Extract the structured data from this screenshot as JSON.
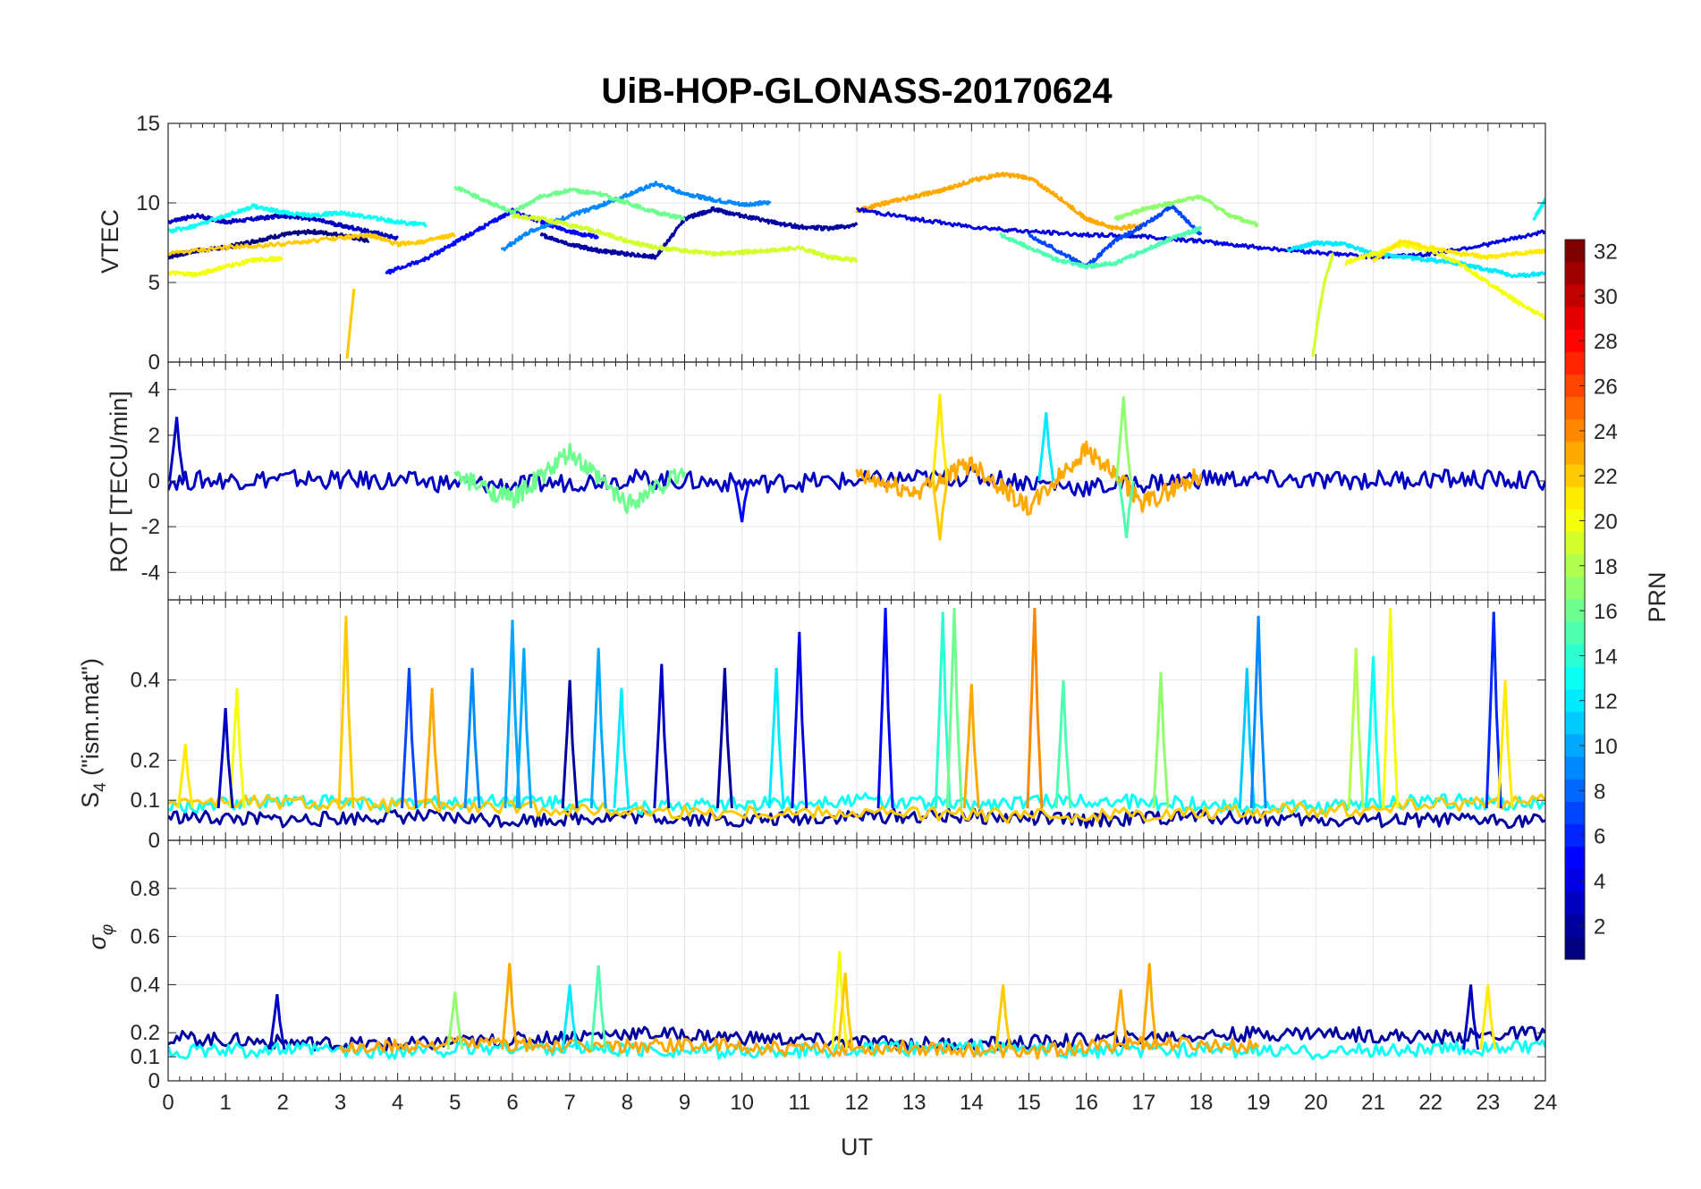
{
  "chart_data": [
    {
      "panel": "vtec",
      "type": "line",
      "title": "UiB-HOP-GLONASS-20170624",
      "ylabel": "VTEC",
      "xlabel": "",
      "xlim": [
        0,
        24
      ],
      "ylim": [
        0,
        15
      ],
      "yticks": [
        0,
        5,
        10,
        15
      ],
      "grid": true,
      "series": [
        {
          "prn": 1,
          "x": [
            0,
            0.5,
            1,
            1.5,
            2,
            2.5,
            3,
            3.5
          ],
          "y": [
            6.6,
            7.0,
            7.2,
            7.6,
            8.0,
            8.2,
            8.0,
            7.6
          ]
        },
        {
          "prn": 3,
          "x": [
            0,
            0.5,
            1,
            1.5,
            2,
            2.5,
            3,
            3.5,
            4
          ],
          "y": [
            8.8,
            9.2,
            8.8,
            9.0,
            9.2,
            9.0,
            8.6,
            8.2,
            7.8
          ]
        },
        {
          "prn": 5,
          "x": [
            3.8,
            4.5,
            5,
            5.5,
            6,
            6.5,
            7,
            7.5
          ],
          "y": [
            5.6,
            6.5,
            7.5,
            8.5,
            9.5,
            8.8,
            8.2,
            7.8
          ]
        },
        {
          "prn": 2,
          "x": [
            6.5,
            7,
            7.5,
            8,
            8.5,
            9,
            9.5,
            10,
            10.5,
            11,
            11.5,
            12
          ],
          "y": [
            8.0,
            7.4,
            7.0,
            6.8,
            6.6,
            9.0,
            9.6,
            9.2,
            8.8,
            8.5,
            8.4,
            8.6
          ]
        },
        {
          "prn": 9,
          "x": [
            5.8,
            6.3,
            7,
            7.5,
            8,
            8.5,
            9,
            9.5,
            10,
            10.5
          ],
          "y": [
            7.0,
            8.2,
            9.2,
            9.8,
            10.5,
            11.2,
            10.6,
            10.2,
            9.9,
            10.0
          ]
        },
        {
          "prn": 13,
          "x": [
            0,
            0.5,
            1,
            1.5,
            2,
            2.5,
            3,
            3.5,
            4,
            4.5
          ],
          "y": [
            8.2,
            8.6,
            9.2,
            9.8,
            9.4,
            9.2,
            9.4,
            9.1,
            8.8,
            8.6
          ]
        },
        {
          "prn": 16,
          "x": [
            5,
            5.5,
            6,
            6.5,
            7,
            7.5,
            8,
            8.5,
            9
          ],
          "y": [
            11.0,
            10.2,
            9.4,
            10.4,
            10.8,
            10.6,
            10.0,
            9.4,
            9.0
          ]
        },
        {
          "prn": 19,
          "x": [
            6,
            6.5,
            7,
            7.5,
            8,
            8.5,
            9,
            9.5,
            10,
            10.5,
            11,
            11.5,
            12
          ],
          "y": [
            9.2,
            9.0,
            8.6,
            8.2,
            7.6,
            7.2,
            7.0,
            6.8,
            6.9,
            7.0,
            7.2,
            6.6,
            6.4
          ]
        },
        {
          "prn": 20,
          "x": [
            0,
            0.5,
            1,
            1.5,
            2
          ],
          "y": [
            5.6,
            5.5,
            6.0,
            6.4,
            6.5
          ]
        },
        {
          "prn": 22,
          "x": [
            0,
            1,
            2,
            3,
            3.5,
            4,
            4.5,
            5
          ],
          "y": [
            6.8,
            7.2,
            7.4,
            7.8,
            8.0,
            7.4,
            7.6,
            8.0
          ]
        },
        {
          "prn": 22,
          "x": [
            3.12,
            3.18,
            3.24
          ],
          "y": [
            0.3,
            2.5,
            4.6
          ]
        },
        {
          "prn": 23,
          "x": [
            12,
            12.5,
            13,
            13.5,
            14,
            14.5,
            15,
            15.5,
            16,
            16.5,
            17
          ],
          "y": [
            9.5,
            10.0,
            10.4,
            10.8,
            11.4,
            11.8,
            11.6,
            10.4,
            9.0,
            8.4,
            8.6
          ]
        },
        {
          "prn": 4,
          "x": [
            12,
            13,
            14,
            15,
            16,
            17,
            18,
            19,
            20,
            21,
            22,
            23,
            24
          ],
          "y": [
            9.6,
            9.0,
            8.5,
            8.2,
            8.0,
            7.9,
            7.6,
            7.2,
            6.9,
            6.6,
            6.8,
            7.4,
            8.2
          ]
        },
        {
          "prn": 7,
          "x": [
            15,
            15.5,
            16,
            16.5,
            17,
            17.5,
            18
          ],
          "y": [
            8.0,
            7.0,
            6.0,
            7.6,
            8.6,
            9.8,
            8.0
          ]
        },
        {
          "prn": 12,
          "x": [
            19.5,
            20,
            20.5,
            21,
            21.5,
            22,
            22.5,
            23,
            23.5,
            24
          ],
          "y": [
            7.0,
            7.5,
            7.4,
            6.8,
            6.6,
            6.4,
            6.2,
            5.8,
            5.4,
            5.6
          ]
        },
        {
          "prn": 15,
          "x": [
            14.5,
            15,
            15.5,
            16,
            16.5,
            17,
            17.5,
            18
          ],
          "y": [
            8.0,
            7.2,
            6.4,
            6.0,
            6.2,
            7.0,
            7.8,
            8.4
          ]
        },
        {
          "prn": 17,
          "x": [
            16.5,
            17,
            17.5,
            18,
            18.5,
            19
          ],
          "y": [
            9.0,
            9.6,
            10.0,
            10.4,
            9.2,
            8.6
          ]
        },
        {
          "prn": 19,
          "x": [
            19.95,
            20.05,
            20.15,
            20.3
          ],
          "y": [
            0.4,
            3.0,
            5.0,
            6.8
          ]
        },
        {
          "prn": 20,
          "x": [
            20.5,
            21,
            21.5,
            22,
            22.5,
            23,
            23.5,
            24
          ],
          "y": [
            6.2,
            6.8,
            7.4,
            7.0,
            6.2,
            5.0,
            3.8,
            2.8
          ]
        },
        {
          "prn": 21,
          "x": [
            21,
            21.5,
            22,
            22.5,
            23,
            23.5,
            24
          ],
          "y": [
            6.4,
            7.6,
            7.2,
            6.8,
            6.6,
            6.8,
            7.0
          ]
        },
        {
          "prn": 13,
          "x": [
            23.8,
            24
          ],
          "y": [
            9.0,
            10.2
          ]
        }
      ]
    },
    {
      "panel": "rot",
      "type": "line",
      "ylabel": "ROT [TECU/min]",
      "xlim": [
        0,
        24
      ],
      "ylim": [
        -5.2,
        5.2
      ],
      "yticks": [
        -4,
        -2,
        0,
        2,
        4
      ],
      "grid": true,
      "envelope_note": "noisy series around 0; larger spikes listed",
      "series": [
        {
          "prn": 3,
          "x": [
            0,
            2,
            4,
            6,
            8,
            10,
            12,
            14,
            16,
            18,
            20,
            22,
            24
          ],
          "y": [
            0.0,
            0.1,
            0.0,
            -0.2,
            0.1,
            -0.1,
            0.0,
            0.2,
            -0.3,
            0.1,
            0.0,
            0.1,
            0.0
          ]
        },
        {
          "prn": 23,
          "x": [
            12,
            13,
            14,
            15,
            16,
            17,
            18
          ],
          "y": [
            0.2,
            -0.5,
            0.8,
            -1.2,
            1.4,
            -1.0,
            0.3
          ]
        },
        {
          "prn": 16,
          "x": [
            5,
            6,
            7,
            8,
            9
          ],
          "y": [
            0.2,
            -0.8,
            1.2,
            -1.0,
            0.4
          ]
        }
      ],
      "spikes": [
        {
          "prn": 3,
          "x": 0.15,
          "y": 2.8
        },
        {
          "prn": 21,
          "x": 13.45,
          "y": 3.8
        },
        {
          "prn": 22,
          "x": 13.45,
          "y": -2.6
        },
        {
          "prn": 12,
          "x": 15.3,
          "y": 3.0
        },
        {
          "prn": 17,
          "x": 16.65,
          "y": 3.7
        },
        {
          "prn": 15,
          "x": 16.7,
          "y": -2.5
        },
        {
          "prn": 5,
          "x": 10.0,
          "y": -1.8
        }
      ]
    },
    {
      "panel": "s4",
      "type": "line",
      "ylabel": "S4 (\"ism.mat\")",
      "xlim": [
        0,
        24
      ],
      "ylim": [
        0,
        0.6
      ],
      "yticks": [
        0,
        0.1,
        0.2,
        0.4
      ],
      "grid": true,
      "series": [
        {
          "prn": 2,
          "x": [
            0,
            2,
            4,
            6,
            8,
            10,
            12,
            14,
            16,
            18,
            20,
            22,
            24
          ],
          "y": [
            0.06,
            0.05,
            0.06,
            0.05,
            0.06,
            0.05,
            0.06,
            0.06,
            0.05,
            0.06,
            0.05,
            0.05,
            0.05
          ]
        },
        {
          "prn": 13,
          "x": [
            0,
            2,
            4,
            6,
            8,
            10,
            12,
            14,
            16,
            18,
            20,
            22,
            24
          ],
          "y": [
            0.08,
            0.1,
            0.09,
            0.1,
            0.08,
            0.09,
            0.1,
            0.09,
            0.1,
            0.09,
            0.08,
            0.1,
            0.09
          ]
        },
        {
          "prn": 22,
          "x": [
            0,
            3,
            6,
            9,
            12,
            15,
            18,
            21,
            24
          ],
          "y": [
            0.1,
            0.09,
            0.08,
            0.07,
            0.07,
            0.06,
            0.07,
            0.08,
            0.1
          ]
        }
      ],
      "peaks": [
        {
          "prn": 21,
          "x": 0.3,
          "y": 0.24
        },
        {
          "prn": 20,
          "x": 1.2,
          "y": 0.38
        },
        {
          "prn": 3,
          "x": 1.0,
          "y": 0.33
        },
        {
          "prn": 22,
          "x": 3.1,
          "y": 0.56
        },
        {
          "prn": 7,
          "x": 4.2,
          "y": 0.43
        },
        {
          "prn": 23,
          "x": 4.6,
          "y": 0.38
        },
        {
          "prn": 9,
          "x": 5.3,
          "y": 0.43
        },
        {
          "prn": 10,
          "x": 6.0,
          "y": 0.55
        },
        {
          "prn": 10,
          "x": 6.2,
          "y": 0.48
        },
        {
          "prn": 2,
          "x": 7.0,
          "y": 0.4
        },
        {
          "prn": 10,
          "x": 7.5,
          "y": 0.48
        },
        {
          "prn": 12,
          "x": 7.9,
          "y": 0.38
        },
        {
          "prn": 3,
          "x": 8.6,
          "y": 0.44
        },
        {
          "prn": 2,
          "x": 9.7,
          "y": 0.43
        },
        {
          "prn": 12,
          "x": 10.6,
          "y": 0.43
        },
        {
          "prn": 4,
          "x": 11.0,
          "y": 0.52
        },
        {
          "prn": 5,
          "x": 12.5,
          "y": 0.58
        },
        {
          "prn": 14,
          "x": 13.5,
          "y": 0.57
        },
        {
          "prn": 16,
          "x": 13.7,
          "y": 0.58
        },
        {
          "prn": 23,
          "x": 14.0,
          "y": 0.39
        },
        {
          "prn": 24,
          "x": 15.1,
          "y": 0.58
        },
        {
          "prn": 15,
          "x": 15.6,
          "y": 0.4
        },
        {
          "prn": 17,
          "x": 17.3,
          "y": 0.42
        },
        {
          "prn": 11,
          "x": 18.8,
          "y": 0.43
        },
        {
          "prn": 9,
          "x": 19.0,
          "y": 0.56
        },
        {
          "prn": 18,
          "x": 20.7,
          "y": 0.48
        },
        {
          "prn": 20,
          "x": 21.3,
          "y": 0.58
        },
        {
          "prn": 13,
          "x": 21.0,
          "y": 0.46
        },
        {
          "prn": 6,
          "x": 23.1,
          "y": 0.57
        },
        {
          "prn": 21,
          "x": 23.3,
          "y": 0.4
        }
      ]
    },
    {
      "panel": "sigma_phi",
      "type": "line",
      "ylabel": "σ_φ",
      "xlabel": "UT",
      "xlim": [
        0,
        24
      ],
      "ylim": [
        0,
        1
      ],
      "yticks": [
        0,
        0.1,
        0.2,
        0.4,
        0.6,
        0.8
      ],
      "xticks": [
        0,
        1,
        2,
        3,
        4,
        5,
        6,
        7,
        8,
        9,
        10,
        11,
        12,
        13,
        14,
        15,
        16,
        17,
        18,
        19,
        20,
        21,
        22,
        23,
        24
      ],
      "grid": true,
      "series": [
        {
          "prn": 2,
          "x": [
            0,
            2,
            4,
            6,
            8,
            10,
            12,
            14,
            16,
            18,
            20,
            22,
            24
          ],
          "y": [
            0.18,
            0.16,
            0.15,
            0.17,
            0.2,
            0.18,
            0.16,
            0.15,
            0.17,
            0.19,
            0.2,
            0.18,
            0.2
          ]
        },
        {
          "prn": 13,
          "x": [
            0,
            2,
            4,
            6,
            8,
            10,
            12,
            14,
            16,
            18,
            20,
            22,
            24
          ],
          "y": [
            0.12,
            0.13,
            0.12,
            0.14,
            0.13,
            0.12,
            0.13,
            0.14,
            0.12,
            0.13,
            0.12,
            0.13,
            0.14
          ]
        },
        {
          "prn": 23,
          "x": [
            3,
            5,
            7,
            9,
            11,
            13,
            15,
            17,
            19
          ],
          "y": [
            0.13,
            0.16,
            0.14,
            0.15,
            0.13,
            0.14,
            0.12,
            0.16,
            0.14
          ]
        }
      ],
      "peaks": [
        {
          "prn": 23,
          "x": 5.95,
          "y": 0.49
        },
        {
          "prn": 15,
          "x": 7.5,
          "y": 0.48
        },
        {
          "prn": 12,
          "x": 7.0,
          "y": 0.4
        },
        {
          "prn": 20,
          "x": 11.7,
          "y": 0.54
        },
        {
          "prn": 22,
          "x": 11.8,
          "y": 0.45
        },
        {
          "prn": 22,
          "x": 14.55,
          "y": 0.4
        },
        {
          "prn": 23,
          "x": 17.1,
          "y": 0.49
        },
        {
          "prn": 23,
          "x": 16.6,
          "y": 0.38
        },
        {
          "prn": 3,
          "x": 22.7,
          "y": 0.4
        },
        {
          "prn": 21,
          "x": 23.0,
          "y": 0.4
        },
        {
          "prn": 3,
          "x": 1.9,
          "y": 0.36
        },
        {
          "prn": 17,
          "x": 5.0,
          "y": 0.37
        }
      ]
    }
  ],
  "colorbar": {
    "label": "PRN",
    "min": 1,
    "max": 32,
    "ticks": [
      2,
      4,
      6,
      8,
      10,
      12,
      14,
      16,
      18,
      20,
      22,
      24,
      26,
      28,
      30,
      32
    ]
  }
}
